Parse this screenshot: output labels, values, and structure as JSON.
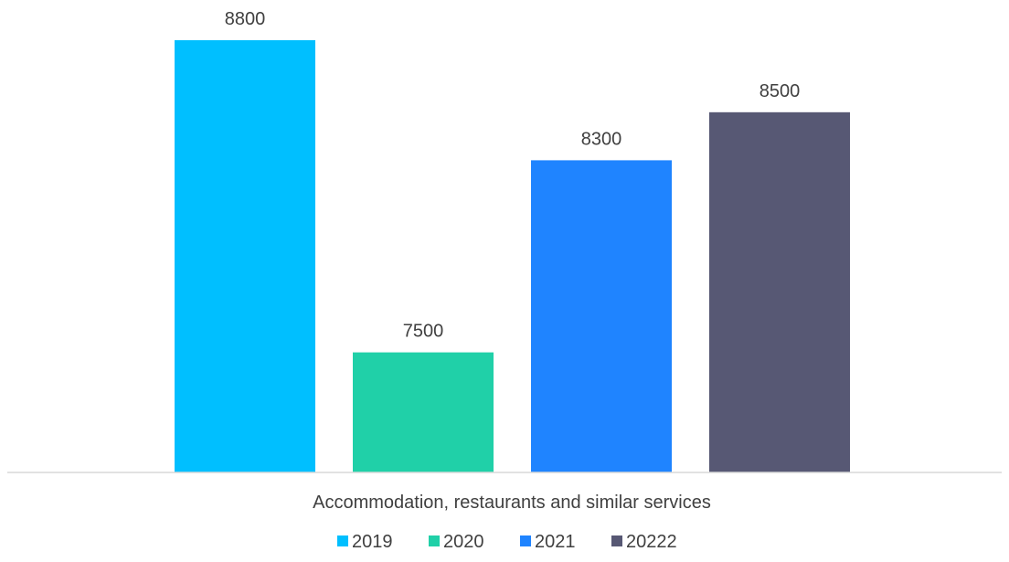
{
  "chart_data": {
    "type": "bar",
    "title": "",
    "xlabel": "",
    "ylabel": "",
    "categories": [
      "Accommodation, restaurants and similar services"
    ],
    "ylim": [
      7000,
      8800
    ],
    "grid": false,
    "legend_position": "bottom",
    "series": [
      {
        "name": "2019",
        "values": [
          8800
        ],
        "color": "#00BFFF"
      },
      {
        "name": "2020",
        "values": [
          7500
        ],
        "color": "#20D0A8"
      },
      {
        "name": "2021",
        "values": [
          8300
        ],
        "color": "#1F84FF"
      },
      {
        "name": "20222",
        "values": [
          8500
        ],
        "color": "#575874"
      }
    ]
  }
}
